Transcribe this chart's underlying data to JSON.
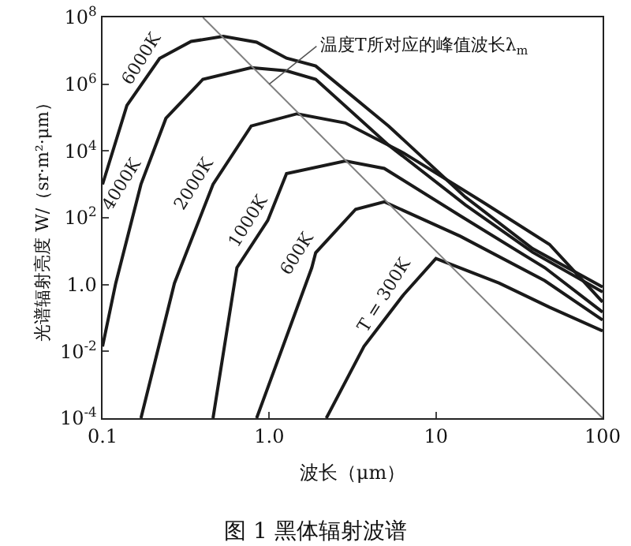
{
  "chart_data": {
    "type": "line",
    "title": "图 1 黑体辐射波谱",
    "xlabel": "波长（μm）",
    "ylabel": "光谱辐射亮度 W/（sr·m²·μm）",
    "log": "xy",
    "grid": false,
    "legend": false,
    "marker": "none",
    "line_style": "solid",
    "xlim": [
      0.1,
      100
    ],
    "xticks": [
      0.1,
      {
        "value": 1,
        "label": "1.0"
      },
      10,
      100
    ],
    "ylim": [
      0.0001,
      100000000
    ],
    "yticks": [
      {
        "value": 0.0001,
        "label": "10$^{-4}$"
      },
      {
        "value": 0.01,
        "label": "10$^{-2}$"
      },
      {
        "value": 1,
        "label": "1.0"
      },
      {
        "value": 100,
        "label": "10$^{2}$"
      },
      {
        "value": 10000,
        "label": "10$^{4}$"
      },
      {
        "value": 1000000,
        "label": "10$^{6}$"
      },
      {
        "value": 100000000,
        "label": "10$^{8}$"
      }
    ],
    "annotations": [
      {
        "text": "温度T所对应的峰值波长λ$_{m}$",
        "x": 1.0,
        "y": 1000000
      }
    ],
    "series": [
      {
        "name": "6000K",
        "color": "#1a1a1a",
        "x": [
          0.1,
          0.14,
          0.22,
          0.34,
          0.53,
          0.84,
          1.27,
          1.9,
          5.2,
          15,
          38,
          100
        ],
        "values": [
          1000,
          230000,
          5900000,
          19000000,
          27000000,
          18000000,
          6000000,
          3500000,
          56000,
          420,
          12,
          0.85
        ]
      },
      {
        "name": "4000K",
        "color": "#1a1a1a",
        "x": [
          0.1,
          0.12,
          0.17,
          0.24,
          0.4,
          0.78,
          1.27,
          1.9,
          5.2,
          15,
          38,
          100
        ],
        "values": [
          0.014,
          1.1,
          1000,
          95000,
          1400000,
          3100000,
          2500000,
          1400000,
          15000,
          245,
          9.3,
          0.6
        ]
      },
      {
        "name": "2000K",
        "color": "#1a1a1a",
        "x": [
          0.17,
          0.27,
          0.46,
          0.78,
          1.47,
          2.86,
          6.4,
          19,
          48,
          100
        ],
        "values": [
          0.0001,
          1.1,
          1000,
          56000,
          130000,
          69000,
          8700,
          300,
          16,
          0.3
        ]
      },
      {
        "name": "1000K",
        "color": "#1a1a1a",
        "x": [
          0.46,
          0.64,
          0.98,
          1.27,
          2.86,
          4.9,
          14,
          45,
          100
        ],
        "values": [
          0.0001,
          3.2,
          83,
          2100,
          5000,
          3000,
          115,
          3.2,
          0.15
        ]
      },
      {
        "name": "600K",
        "color": "#1a1a1a",
        "x": [
          0.84,
          1.8,
          1.9,
          3.3,
          4.9,
          14,
          45,
          100
        ],
        "values": [
          0.0001,
          3.2,
          9,
          180,
          300,
          28,
          1.3,
          0.087
        ]
      },
      {
        "name": "T = 300K",
        "color": "#1a1a1a",
        "x": [
          2.2,
          3.7,
          6.4,
          10,
          24,
          48,
          100
        ],
        "values": [
          0.0001,
          0.014,
          0.5,
          6,
          1.1,
          0.21,
          0.041
        ]
      },
      {
        "type": "line",
        "color": "#808080",
        "x": [
          0.4,
          100
        ],
        "values": [
          100000000,
          0.0001
        ]
      }
    ]
  }
}
